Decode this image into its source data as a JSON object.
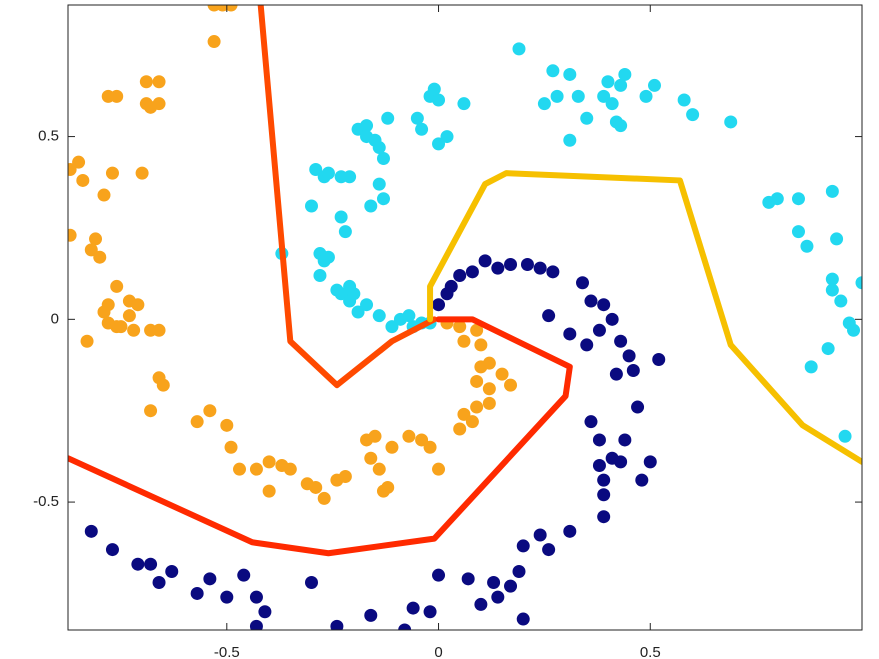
{
  "chart_data": {
    "type": "scatter",
    "xlim": [
      -0.875,
      1.0
    ],
    "ylim": [
      -0.85,
      0.86
    ],
    "xticks": [
      -0.5,
      0,
      0.5
    ],
    "yticks": [
      -0.5,
      0,
      0.5
    ],
    "series": [
      {
        "type": "scatter",
        "color": "#0a0a80",
        "x": [
          -0.82,
          -0.77,
          -0.71,
          -0.68,
          -0.66,
          -0.63,
          -0.57,
          -0.54,
          -0.5,
          -0.46,
          -0.43,
          -0.41,
          -0.43,
          -0.3,
          -0.24,
          -0.16,
          -0.08,
          -0.06,
          -0.02,
          0.0,
          0.07,
          0.1,
          0.13,
          0.14,
          0.17,
          0.19,
          0.2,
          0.2,
          0.24,
          0.26,
          0.31,
          0.36,
          0.38,
          0.38,
          0.39,
          0.41,
          0.39,
          0.39,
          0.43,
          0.44,
          0.47,
          0.48,
          0.5,
          0.46,
          0.45,
          0.52,
          0.43,
          0.41,
          0.39,
          0.36,
          0.34,
          0.31,
          0.26,
          0.27,
          0.24,
          0.21,
          0.17,
          0.14,
          0.11,
          0.08,
          0.05,
          0.03,
          0.02,
          0.0,
          0.38,
          0.42,
          0.35
        ],
        "y": [
          -0.58,
          -0.63,
          -0.67,
          -0.67,
          -0.72,
          -0.69,
          -0.75,
          -0.71,
          -0.76,
          -0.7,
          -0.76,
          -0.8,
          -0.84,
          -0.72,
          -0.84,
          -0.81,
          -0.85,
          -0.79,
          -0.8,
          -0.7,
          -0.71,
          -0.78,
          -0.72,
          -0.76,
          -0.73,
          -0.69,
          -0.82,
          -0.62,
          -0.59,
          -0.63,
          -0.58,
          -0.28,
          -0.33,
          -0.4,
          -0.44,
          -0.38,
          -0.48,
          -0.54,
          -0.39,
          -0.33,
          -0.24,
          -0.44,
          -0.39,
          -0.14,
          -0.1,
          -0.11,
          -0.06,
          0.0,
          0.04,
          0.05,
          0.1,
          -0.04,
          0.01,
          0.13,
          0.14,
          0.15,
          0.15,
          0.14,
          0.16,
          0.13,
          0.12,
          0.09,
          0.07,
          0.04,
          -0.03,
          -0.15,
          -0.07
        ]
      },
      {
        "type": "scatter",
        "color": "#f8a31c",
        "x": [
          -0.53,
          -0.51,
          -0.49,
          -0.53,
          -0.78,
          -0.76,
          -0.69,
          -0.66,
          -0.69,
          -0.68,
          -0.66,
          -0.87,
          -0.85,
          -0.84,
          -0.77,
          -0.7,
          -0.79,
          -0.87,
          -0.81,
          -0.82,
          -0.8,
          -0.76,
          -0.78,
          -0.79,
          -0.73,
          -0.71,
          -0.73,
          -0.78,
          -0.76,
          -0.75,
          -0.72,
          -0.68,
          -0.66,
          -0.83,
          -0.66,
          -0.65,
          -0.68,
          -0.57,
          -0.54,
          -0.5,
          -0.49,
          -0.47,
          -0.43,
          -0.4,
          -0.4,
          -0.37,
          -0.35,
          -0.31,
          -0.29,
          -0.27,
          -0.24,
          -0.22,
          -0.17,
          -0.15,
          -0.16,
          -0.14,
          -0.12,
          -0.13,
          -0.11,
          -0.07,
          -0.04,
          -0.02,
          0.0,
          0.05,
          0.06,
          0.08,
          0.09,
          0.12,
          0.12,
          0.09,
          0.1,
          0.12,
          0.15,
          0.17,
          0.1,
          0.09,
          0.05,
          0.02,
          0.06
        ],
        "y": [
          0.86,
          0.86,
          0.86,
          0.76,
          0.61,
          0.61,
          0.65,
          0.65,
          0.59,
          0.58,
          0.59,
          0.41,
          0.43,
          0.38,
          0.4,
          0.4,
          0.34,
          0.23,
          0.22,
          0.19,
          0.17,
          0.09,
          0.04,
          0.02,
          0.05,
          0.04,
          0.01,
          -0.01,
          -0.02,
          -0.02,
          -0.03,
          -0.03,
          -0.03,
          -0.06,
          -0.16,
          -0.18,
          -0.25,
          -0.28,
          -0.25,
          -0.29,
          -0.35,
          -0.41,
          -0.41,
          -0.39,
          -0.47,
          -0.4,
          -0.41,
          -0.45,
          -0.46,
          -0.49,
          -0.44,
          -0.43,
          -0.33,
          -0.32,
          -0.38,
          -0.41,
          -0.46,
          -0.47,
          -0.35,
          -0.32,
          -0.33,
          -0.35,
          -0.41,
          -0.3,
          -0.26,
          -0.28,
          -0.24,
          -0.23,
          -0.19,
          -0.17,
          -0.13,
          -0.12,
          -0.15,
          -0.18,
          -0.07,
          -0.03,
          -0.02,
          -0.01,
          -0.06
        ]
      },
      {
        "type": "scatter",
        "color": "#22d8f0",
        "x": [
          -0.37,
          -0.3,
          -0.29,
          -0.27,
          -0.26,
          -0.23,
          -0.21,
          -0.28,
          -0.27,
          -0.26,
          -0.28,
          -0.24,
          -0.23,
          -0.21,
          -0.2,
          -0.21,
          -0.19,
          -0.17,
          -0.14,
          -0.11,
          -0.09,
          -0.07,
          -0.06,
          -0.04,
          -0.02,
          -0.23,
          -0.22,
          -0.19,
          -0.17,
          -0.17,
          -0.15,
          -0.14,
          -0.13,
          -0.14,
          -0.16,
          -0.13,
          -0.12,
          -0.05,
          -0.04,
          -0.02,
          -0.01,
          0.0,
          0.0,
          0.02,
          0.06,
          0.19,
          0.25,
          0.27,
          0.28,
          0.31,
          0.31,
          0.33,
          0.35,
          0.39,
          0.4,
          0.41,
          0.42,
          0.43,
          0.43,
          0.44,
          0.49,
          0.51,
          0.58,
          0.6,
          0.69,
          0.78,
          0.8,
          0.85,
          0.93,
          0.85,
          0.87,
          0.94,
          0.93,
          0.93,
          0.95,
          1.0,
          0.97,
          0.98,
          0.92,
          0.88,
          0.96
        ],
        "y": [
          0.18,
          0.31,
          0.41,
          0.39,
          0.4,
          0.39,
          0.39,
          0.18,
          0.16,
          0.17,
          0.12,
          0.08,
          0.07,
          0.05,
          0.07,
          0.09,
          0.02,
          0.04,
          0.01,
          -0.02,
          0.0,
          0.01,
          -0.02,
          -0.01,
          -0.01,
          0.28,
          0.24,
          0.52,
          0.53,
          0.5,
          0.49,
          0.47,
          0.44,
          0.37,
          0.31,
          0.33,
          0.55,
          0.55,
          0.52,
          0.61,
          0.63,
          0.6,
          0.48,
          0.5,
          0.59,
          0.74,
          0.59,
          0.68,
          0.61,
          0.67,
          0.49,
          0.61,
          0.55,
          0.61,
          0.65,
          0.59,
          0.54,
          0.53,
          0.64,
          0.67,
          0.61,
          0.64,
          0.6,
          0.56,
          0.54,
          0.32,
          0.33,
          0.33,
          0.35,
          0.24,
          0.2,
          0.22,
          0.11,
          0.08,
          0.05,
          0.1,
          -0.01,
          -0.03,
          -0.08,
          -0.13,
          -0.32
        ]
      },
      {
        "type": "line",
        "color": "#ff4a00",
        "x": [
          -0.42,
          -0.35,
          -0.24,
          -0.11,
          -0.01
        ],
        "y": [
          0.86,
          -0.06,
          -0.18,
          -0.06,
          0.0
        ]
      },
      {
        "type": "line",
        "color": "#ff2a00",
        "x": [
          -0.875,
          -0.44,
          -0.26,
          -0.01,
          0.3,
          0.31,
          0.08,
          0.0
        ],
        "y": [
          -0.38,
          -0.61,
          -0.64,
          -0.6,
          -0.21,
          -0.13,
          0.0,
          0.0
        ]
      },
      {
        "type": "line",
        "color": "#f6c000",
        "x": [
          -0.02,
          -0.02,
          0.11,
          0.16,
          0.57,
          0.69,
          0.86,
          1.0
        ],
        "y": [
          0.0,
          0.09,
          0.37,
          0.4,
          0.38,
          -0.07,
          -0.29,
          -0.39
        ]
      }
    ]
  }
}
